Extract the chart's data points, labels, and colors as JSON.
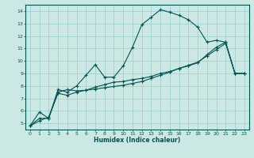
{
  "xlabel": "Humidex (Indice chaleur)",
  "bg_color": "#cce8e4",
  "grid_color": "#99cccc",
  "line_color": "#005555",
  "xlim": [
    -0.5,
    23.5
  ],
  "ylim": [
    4.5,
    14.5
  ],
  "xticks": [
    0,
    1,
    2,
    3,
    4,
    5,
    6,
    7,
    8,
    9,
    10,
    11,
    12,
    13,
    14,
    15,
    16,
    17,
    18,
    19,
    20,
    21,
    22,
    23
  ],
  "yticks": [
    5,
    6,
    7,
    8,
    9,
    10,
    11,
    12,
    13,
    14
  ],
  "line1_x": [
    0,
    1,
    2,
    3,
    4,
    5,
    6,
    7,
    8,
    9,
    10,
    11,
    12,
    13,
    14,
    15,
    16,
    17,
    18,
    19,
    20,
    21,
    22,
    23
  ],
  "line1_y": [
    4.8,
    5.9,
    5.4,
    7.7,
    7.5,
    8.0,
    8.85,
    9.7,
    8.7,
    8.7,
    9.6,
    11.1,
    12.9,
    13.5,
    14.1,
    13.9,
    13.65,
    13.3,
    12.7,
    11.5,
    11.65,
    11.5,
    9.0,
    9.0
  ],
  "line2_x": [
    0,
    1,
    2,
    3,
    4,
    5,
    6,
    7,
    8,
    9,
    10,
    11,
    12,
    13,
    14,
    15,
    16,
    17,
    18,
    19,
    20,
    21,
    22,
    23
  ],
  "line2_y": [
    4.8,
    5.4,
    5.4,
    7.5,
    7.7,
    7.6,
    7.65,
    7.9,
    8.1,
    8.3,
    8.35,
    8.5,
    8.6,
    8.75,
    9.0,
    9.15,
    9.4,
    9.6,
    9.85,
    10.5,
    11.1,
    11.5,
    9.0,
    9.0
  ],
  "line3_x": [
    0,
    1,
    2,
    3,
    4,
    5,
    6,
    7,
    8,
    9,
    10,
    11,
    12,
    13,
    14,
    15,
    16,
    17,
    18,
    19,
    20,
    21,
    22,
    23
  ],
  "line3_y": [
    4.8,
    5.2,
    5.5,
    7.4,
    7.25,
    7.5,
    7.65,
    7.75,
    7.85,
    7.95,
    8.05,
    8.2,
    8.35,
    8.6,
    8.85,
    9.1,
    9.4,
    9.65,
    9.9,
    10.4,
    10.9,
    11.4,
    9.0,
    9.0
  ]
}
